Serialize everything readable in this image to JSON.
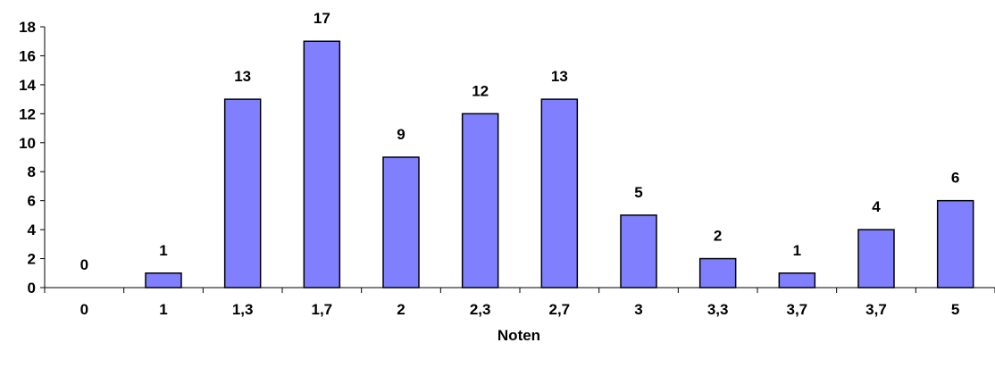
{
  "chart_data": {
    "type": "bar",
    "categories": [
      "0",
      "1",
      "1,3",
      "1,7",
      "2",
      "2,3",
      "2,7",
      "3",
      "3,3",
      "3,7",
      "3,7",
      "5"
    ],
    "values": [
      0,
      1,
      13,
      17,
      9,
      12,
      13,
      5,
      2,
      1,
      4,
      6
    ],
    "data_labels": [
      "0",
      "1",
      "13",
      "17",
      "9",
      "12",
      "13",
      "5",
      "2",
      "1",
      "4",
      "6"
    ],
    "title": "",
    "xlabel": "Noten",
    "ylabel": "",
    "ylim": [
      0,
      18
    ],
    "yticks": [
      "0",
      "2",
      "4",
      "6",
      "8",
      "10",
      "12",
      "14",
      "16",
      "18"
    ],
    "grid": false,
    "legend": "none",
    "colors": {
      "bar_fill": "#8080ff",
      "bar_stroke": "#000000",
      "axis": "#000000",
      "text": "#000000"
    }
  }
}
